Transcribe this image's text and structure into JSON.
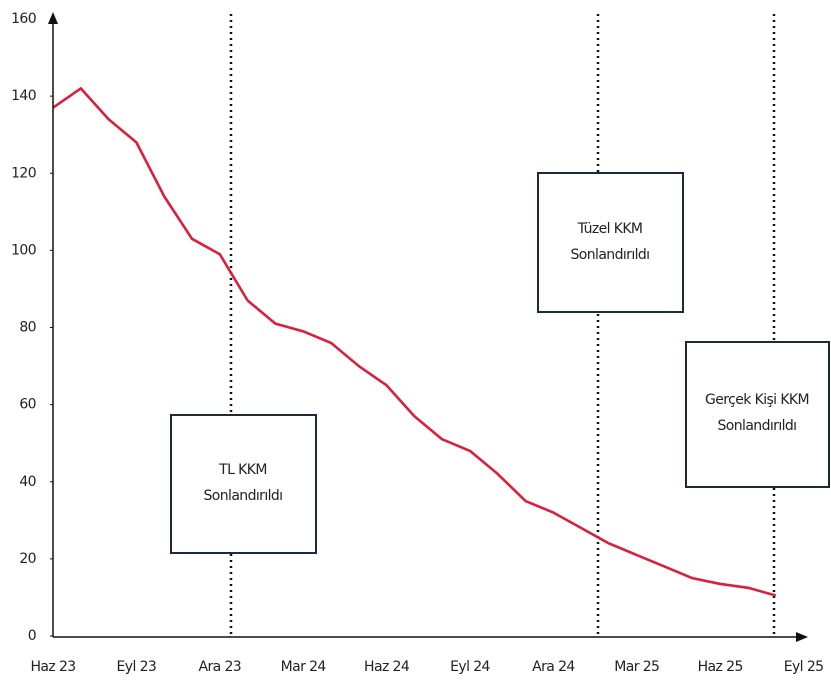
{
  "chart_data": {
    "type": "line",
    "categories": [
      "Haz 23",
      null,
      null,
      "Eyl 23",
      null,
      null,
      "Ara 23",
      null,
      null,
      "Mar 24",
      null,
      null,
      "Haz 24",
      null,
      null,
      "Eyl 24",
      null,
      null,
      "Ara 24",
      null,
      null,
      "Mar 25",
      null,
      null,
      "Haz 25",
      null,
      null,
      "Eyl 25"
    ],
    "series": [
      {
        "color": "#dc1e3c",
        "values": [
          137,
          142,
          134,
          128,
          114,
          103,
          99,
          87,
          81,
          79,
          76,
          70,
          65,
          57,
          51,
          48,
          42,
          35,
          32,
          28,
          24,
          21,
          18,
          15,
          13.5,
          12.5,
          10.5,
          null
        ]
      }
    ],
    "ylim": [
      0,
      160
    ],
    "yticks": [
      0,
      20,
      40,
      60,
      80,
      100,
      120,
      140,
      160
    ],
    "annotations": [
      {
        "lines": [
          "TL KKM",
          "Sonlandırıldı"
        ]
      },
      {
        "lines": [
          "Tüzel KKM",
          "Sonlandırıldı"
        ]
      },
      {
        "lines": [
          "Gerçek Kişi KKM",
          "Sonlandırıldı"
        ]
      }
    ]
  }
}
